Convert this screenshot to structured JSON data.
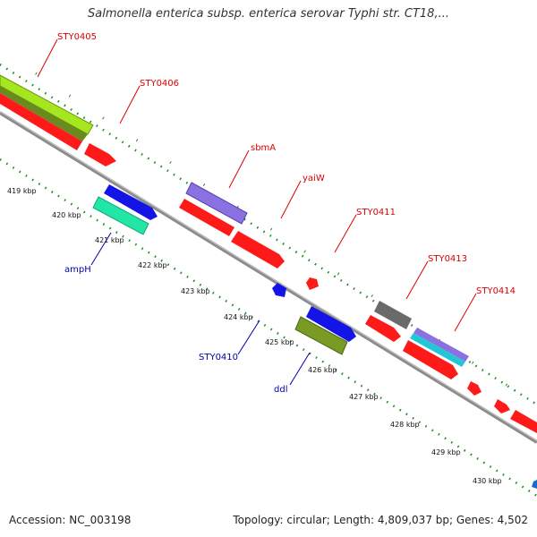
{
  "title": "Salmonella enterica subsp. enterica serovar Typhi str. CT18,...",
  "footer": {
    "accession": "Accession: NC_003198",
    "genome_info": "Topology: circular; Length: 4,809,037 bp; Genes: 4,502"
  },
  "kbp_labels": [
    "419 kbp",
    "420 kbp",
    "421 kbp",
    "422 kbp",
    "423 kbp",
    "424 kbp",
    "425 kbp",
    "426 kbp",
    "427 kbp",
    "428 kbp",
    "429 kbp",
    "430 kbp"
  ],
  "gene_labels": {
    "sty0405": "STY0405",
    "sty0406": "STY0406",
    "sbmA": "sbmA",
    "yaiW": "yaiW",
    "sty0411": "STY0411",
    "sty0413": "STY0413",
    "sty0414": "STY0414",
    "ampH": "ampH",
    "sty0410": "STY0410",
    "ddl": "ddl"
  },
  "colors": {
    "red": "#ff1a1a",
    "blue": "#1414e6",
    "teal": "#22e6a6",
    "lime": "#a6e61e",
    "purple": "#8a70e0",
    "olive": "#7a9a26",
    "gray": "#6a6a6a",
    "cyan": "#22c6d6",
    "track": "#8c8c8c",
    "ticks": "#1e8c1e"
  }
}
